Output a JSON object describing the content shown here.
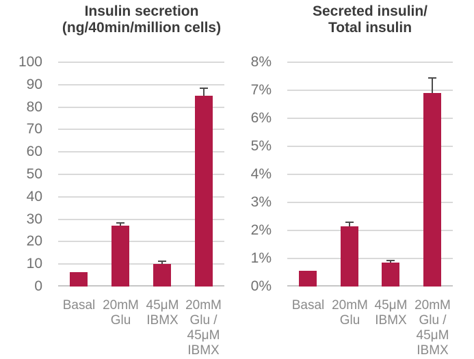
{
  "colors": {
    "bar": "#b11a46",
    "gridline": "#d9d9d9",
    "axis_line": "#c6c6c6",
    "title_text": "#3b3b3b",
    "tick_text": "#717171",
    "category_text": "#8a8a8a",
    "error_bar": "#4a4a4a",
    "background": "#ffffff"
  },
  "charts": [
    {
      "title_lines": [
        "Insulin secretion",
        "(ng/40min/million cells)"
      ]
    },
    {
      "title_lines": [
        "Secreted insulin/",
        "Total insulin"
      ]
    }
  ],
  "chart_data": [
    {
      "type": "bar",
      "title": "Insulin secretion (ng/40min/million cells)",
      "categories": [
        "Basal",
        "20mM Glu",
        "45μM IBMX",
        "20mM Glu / 45μM IBMX"
      ],
      "categories_lines": [
        [
          "Basal"
        ],
        [
          "20mM",
          "Glu"
        ],
        [
          "45μM",
          "IBMX"
        ],
        [
          "20mM",
          "Glu /",
          "45μM",
          "IBMX"
        ]
      ],
      "values": [
        6.5,
        27,
        10,
        85
      ],
      "errors_plus": [
        0,
        1,
        1,
        3
      ],
      "ylim": [
        0,
        100
      ],
      "ytick_step": 10,
      "ytick_labels": [
        "0",
        "10",
        "20",
        "30",
        "40",
        "50",
        "60",
        "70",
        "80",
        "90",
        "100"
      ],
      "xlabel": "",
      "ylabel": "",
      "grid": true,
      "legend": "none"
    },
    {
      "type": "bar",
      "title": "Secreted insulin/ Total insulin",
      "categories": [
        "Basal",
        "20mM Glu",
        "45μM IBMX",
        "20mM Glu / 45μM IBMX"
      ],
      "categories_lines": [
        [
          "Basal"
        ],
        [
          "20mM",
          "Glu"
        ],
        [
          "45μM",
          "IBMX"
        ],
        [
          "20mM",
          "Glu /",
          "45μM",
          "IBMX"
        ]
      ],
      "values": [
        0.55,
        2.15,
        0.85,
        6.9
      ],
      "errors_plus": [
        0,
        0.12,
        0.05,
        0.5
      ],
      "ylim": [
        0,
        8
      ],
      "ytick_step": 1,
      "ytick_labels": [
        "0%",
        "1%",
        "2%",
        "3%",
        "4%",
        "5%",
        "6%",
        "7%",
        "8%"
      ],
      "xlabel": "",
      "ylabel": "",
      "grid": true,
      "legend": "none"
    }
  ]
}
